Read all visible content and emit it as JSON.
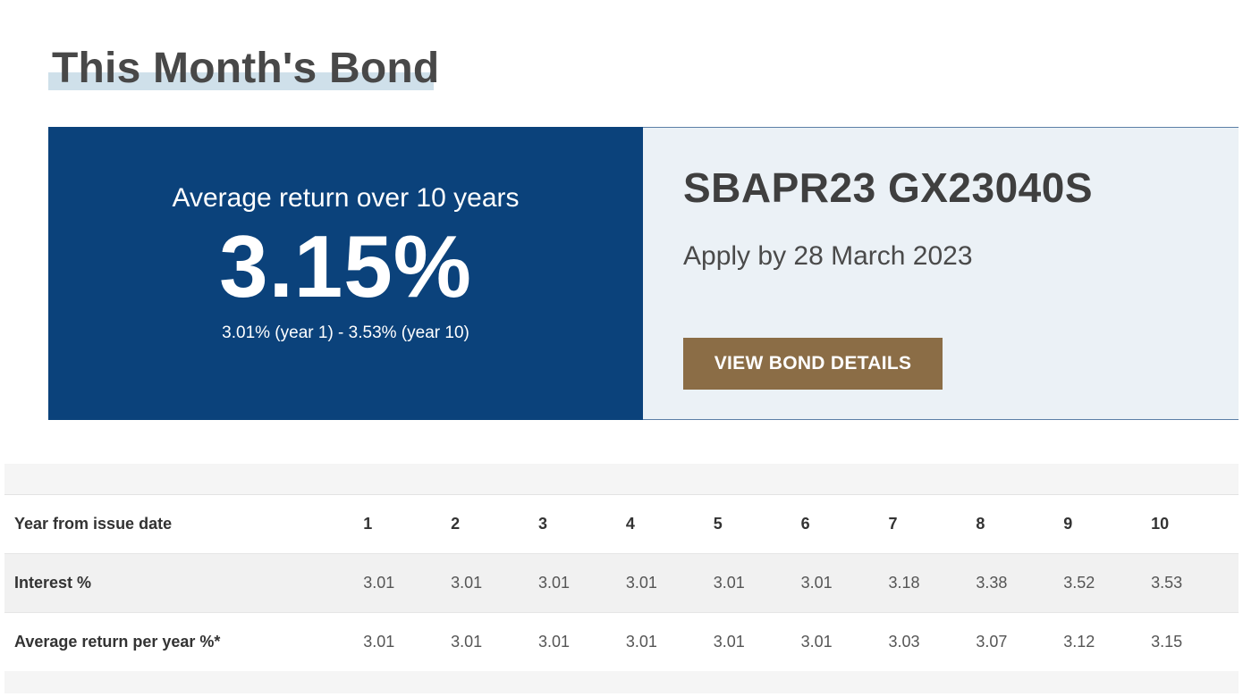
{
  "page": {
    "title": "This Month's Bond"
  },
  "bond": {
    "rate_caption": "Average return over 10 years",
    "rate_value": "3.15%",
    "rate_range": "3.01% (year 1) - 3.53% (year 10)",
    "name": "SBAPR23 GX23040S",
    "apply_by": "Apply by 28 March 2023",
    "button_label": "VIEW BOND DETAILS"
  },
  "colors": {
    "rate_panel": "#0b427b",
    "info_panel": "#ebf1f6",
    "button": "#8b6d46",
    "title_highlight": "#cfe0ea"
  },
  "table": {
    "header": {
      "label": "Year from issue date",
      "years": [
        "1",
        "2",
        "3",
        "4",
        "5",
        "6",
        "7",
        "8",
        "9",
        "10"
      ]
    },
    "rows": [
      {
        "label": "Interest %",
        "values": [
          "3.01",
          "3.01",
          "3.01",
          "3.01",
          "3.01",
          "3.01",
          "3.18",
          "3.38",
          "3.52",
          "3.53"
        ]
      },
      {
        "label": "Average return per year %*",
        "values": [
          "3.01",
          "3.01",
          "3.01",
          "3.01",
          "3.01",
          "3.01",
          "3.03",
          "3.07",
          "3.12",
          "3.15"
        ]
      }
    ]
  }
}
